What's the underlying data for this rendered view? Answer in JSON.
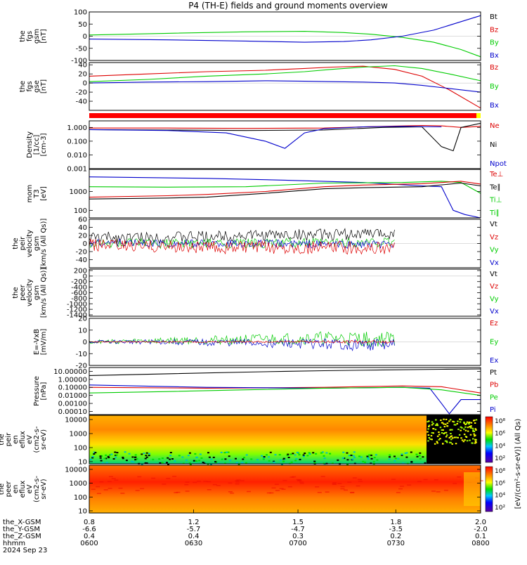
{
  "title": "P4 (TH-E) fields and ground moments overview",
  "x_axis": {
    "rows": [
      {
        "label": "the_X-GSM",
        "values": [
          "0.8",
          "1.2",
          "1.5",
          "1.8",
          "2.0"
        ]
      },
      {
        "label": "the_Y-GSM",
        "values": [
          "-6.6",
          "-5.7",
          "-4.7",
          "-3.5",
          "-2.0"
        ]
      },
      {
        "label": "the_Z-GSM",
        "values": [
          "0.4",
          "0.4",
          "0.3",
          "0.2",
          "0.1"
        ]
      },
      {
        "label": "hhmm",
        "values": [
          "0600",
          "0630",
          "0700",
          "0730",
          "0800"
        ]
      }
    ],
    "date_label": "2024 Sep 23"
  },
  "colorbar_label": "[eV/(cm²-s-sr-eV)] (All Qs)",
  "colors": {
    "black": "#000000",
    "red": "#dd0000",
    "green": "#00cc00",
    "blue": "#0000cc",
    "status_bar": "#ff0000"
  },
  "chart_data": [
    {
      "id": "fgs-gsm",
      "type": "line",
      "ylabel": [
        "the",
        "fgs",
        "gsm",
        "[nT]"
      ],
      "ylim": [
        -100,
        100
      ],
      "ytick_values": [
        -100,
        -50,
        0,
        50,
        100
      ],
      "ytick_labels": [
        "-100",
        "-50",
        "0",
        "50",
        "100"
      ],
      "legend": [
        {
          "text": "Bt",
          "color": "#000000"
        },
        {
          "text": "Bz",
          "color": "#dd0000"
        },
        {
          "text": "By",
          "color": "#00cc00"
        },
        {
          "text": "Bx",
          "color": "#0000cc"
        }
      ],
      "x": [
        "06:00",
        "06:30",
        "07:00",
        "07:30",
        "08:00"
      ],
      "series": [
        {
          "name": "By",
          "color": "#00cc00",
          "x": [
            0,
            0.2,
            0.4,
            0.55,
            0.65,
            0.72,
            0.8,
            0.88,
            0.95,
            1.0
          ],
          "values": [
            5,
            12,
            18,
            20,
            15,
            8,
            -5,
            -25,
            -55,
            -85
          ]
        },
        {
          "name": "Bx",
          "color": "#0000cc",
          "x": [
            0,
            0.2,
            0.4,
            0.55,
            0.65,
            0.72,
            0.8,
            0.88,
            0.95,
            1.0
          ],
          "values": [
            -12,
            -15,
            -20,
            -25,
            -22,
            -15,
            0,
            25,
            60,
            85
          ]
        }
      ]
    },
    {
      "id": "fgs-gse",
      "type": "line",
      "ylabel": [
        "the",
        "fgs",
        "gse",
        "[nT]"
      ],
      "ylim": [
        -60,
        45
      ],
      "ytick_values": [
        -40,
        -20,
        0,
        20,
        40
      ],
      "ytick_labels": [
        "-40",
        "-20",
        "0",
        "20",
        "40"
      ],
      "legend": [
        {
          "text": "Bz",
          "color": "#dd0000"
        },
        {
          "text": "By",
          "color": "#00cc00"
        },
        {
          "text": "Bx",
          "color": "#0000cc"
        }
      ],
      "x": [
        "06:00",
        "06:30",
        "07:00",
        "07:30",
        "08:00"
      ],
      "series": [
        {
          "name": "Bz",
          "color": "#dd0000",
          "x": [
            0,
            0.15,
            0.3,
            0.45,
            0.55,
            0.62,
            0.7,
            0.78,
            0.85,
            0.92,
            1.0
          ],
          "values": [
            15,
            20,
            25,
            28,
            32,
            35,
            37,
            30,
            15,
            -15,
            -55
          ]
        },
        {
          "name": "By",
          "color": "#00cc00",
          "x": [
            0,
            0.15,
            0.3,
            0.45,
            0.55,
            0.62,
            0.7,
            0.78,
            0.85,
            0.92,
            1.0
          ],
          "values": [
            3,
            8,
            15,
            20,
            25,
            30,
            35,
            38,
            32,
            20,
            5
          ]
        },
        {
          "name": "Bx",
          "color": "#0000cc",
          "x": [
            0,
            0.15,
            0.3,
            0.45,
            0.55,
            0.62,
            0.7,
            0.78,
            0.85,
            0.92,
            1.0
          ],
          "values": [
            0,
            2,
            3,
            5,
            4,
            3,
            2,
            0,
            -5,
            -12,
            -20
          ]
        }
      ]
    },
    {
      "id": "density",
      "type": "line",
      "log_scale": true,
      "ylabel": [
        "Density",
        "[1/cc]",
        "[cm-3]"
      ],
      "ylim": [
        0.001,
        3
      ],
      "ytick_values": [
        0.001,
        0.01,
        0.1,
        1
      ],
      "ytick_labels": [
        "0.001",
        "0.010",
        "0.100",
        "1.000"
      ],
      "legend": [
        {
          "text": "Ne",
          "color": "#dd0000"
        },
        {
          "text": "Ni",
          "color": "#000000"
        },
        {
          "text": "Npot",
          "color": "#0000cc"
        }
      ],
      "x": [
        "06:00",
        "06:30",
        "07:00",
        "07:30",
        "08:00"
      ],
      "series": [
        {
          "name": "Ne",
          "color": "#dd0000",
          "x": [
            0,
            0.2,
            0.4,
            0.6,
            0.75,
            0.85,
            0.9,
            0.95,
            1.0
          ],
          "values": [
            0.9,
            0.9,
            0.85,
            0.9,
            1.2,
            1.4,
            1.3,
            1.0,
            1.2
          ]
        },
        {
          "name": "Ni",
          "color": "#000000",
          "x": [
            0,
            0.2,
            0.4,
            0.6,
            0.75,
            0.85,
            0.9,
            0.93,
            0.95,
            1.0
          ],
          "values": [
            0.7,
            0.65,
            0.6,
            0.65,
            1.0,
            1.1,
            0.04,
            0.02,
            1.0,
            2.0
          ]
        },
        {
          "name": "Npot",
          "color": "#0000cc",
          "x": [
            0,
            0.2,
            0.35,
            0.45,
            0.5,
            0.55,
            0.6,
            0.7,
            0.8,
            0.9
          ],
          "values": [
            0.7,
            0.6,
            0.4,
            0.1,
            0.03,
            0.4,
            0.8,
            1.1,
            1.2,
            1.1
          ]
        }
      ]
    },
    {
      "id": "mom-temp",
      "type": "line",
      "log_scale": true,
      "ylabel": [
        "mom",
        "T3",
        "[eV]"
      ],
      "ylim": [
        40,
        15000
      ],
      "ytick_values": [
        100,
        1000
      ],
      "ytick_labels": [
        "100",
        "1000"
      ],
      "legend": [
        {
          "text": "Te⊥",
          "color": "#dd0000"
        },
        {
          "text": "Te∥",
          "color": "#000000"
        },
        {
          "text": "Ti⊥",
          "color": "#00cc00"
        },
        {
          "text": "Ti∥",
          "color": "#00cc00"
        }
      ],
      "x": [
        "06:00",
        "06:30",
        "07:00",
        "07:30",
        "08:00"
      ],
      "series": [
        {
          "name": "Ti",
          "color": "#0000cc",
          "x": [
            0,
            0.3,
            0.5,
            0.7,
            0.85,
            0.9,
            0.93,
            0.96,
            1.0
          ],
          "values": [
            6000,
            5000,
            4000,
            3000,
            2000,
            1800,
            100,
            60,
            40
          ]
        },
        {
          "name": "Ti∥",
          "color": "#00cc00",
          "x": [
            0,
            0.2,
            0.4,
            0.6,
            0.8,
            0.9,
            0.95,
            1.0
          ],
          "values": [
            1800,
            1700,
            1800,
            2800,
            3000,
            3500,
            3000,
            800
          ]
        },
        {
          "name": "Te⊥",
          "color": "#dd0000",
          "x": [
            0,
            0.2,
            0.3,
            0.45,
            0.6,
            0.7,
            0.85,
            0.95,
            1.0
          ],
          "values": [
            500,
            600,
            700,
            1000,
            1800,
            2200,
            2600,
            3500,
            2500
          ]
        },
        {
          "name": "Te∥",
          "color": "#000000",
          "x": [
            0,
            0.2,
            0.3,
            0.45,
            0.6,
            0.7,
            0.85,
            0.95,
            1.0
          ],
          "values": [
            400,
            450,
            500,
            800,
            1400,
            1600,
            1800,
            2800,
            2000
          ]
        }
      ]
    },
    {
      "id": "peir-velocity",
      "type": "line",
      "ylabel": [
        "the",
        "peir",
        "velocity",
        "gsm",
        "[km/s (All Qs)]"
      ],
      "ylim": [
        -60,
        60
      ],
      "ytick_values": [
        -40,
        -20,
        0,
        20,
        40,
        60
      ],
      "ytick_labels": [
        "-40",
        "-20",
        "0",
        "20",
        "40",
        "60"
      ],
      "legend": [
        {
          "text": "Vt",
          "color": "#000000"
        },
        {
          "text": "Vz",
          "color": "#dd0000"
        },
        {
          "text": "Vy",
          "color": "#00cc00"
        },
        {
          "text": "Vx",
          "color": "#0000cc"
        }
      ],
      "x": [
        "06:00",
        "06:30",
        "07:00",
        "07:30",
        "08:00"
      ],
      "series": [
        {
          "name": "Vt",
          "color": "#000000",
          "x": [
            0,
            0.2,
            0.4,
            0.6,
            0.78
          ],
          "values": [
            15,
            15,
            20,
            22,
            25
          ]
        },
        {
          "name": "Vx",
          "color": "#0000cc",
          "x": [
            0,
            0.2,
            0.4,
            0.6,
            0.78
          ],
          "values": [
            2,
            0,
            0,
            -2,
            -3
          ]
        },
        {
          "name": "Vy",
          "color": "#00cc00",
          "x": [
            0,
            0.2,
            0.4,
            0.6,
            0.78
          ],
          "values": [
            0,
            0,
            0,
            2,
            3
          ]
        },
        {
          "name": "Vz",
          "color": "#dd0000",
          "x": [
            0,
            0.2,
            0.4,
            0.6,
            0.78
          ],
          "values": [
            -5,
            -8,
            -10,
            -10,
            -12
          ]
        }
      ]
    },
    {
      "id": "peer-velocity",
      "type": "line",
      "ylabel": [
        "the",
        "peer",
        "velocity",
        "gsm",
        "[km/s (All Qs)]"
      ],
      "ylim": [
        -1450,
        250
      ],
      "ytick_values": [
        -1400,
        -1200,
        -1000,
        -800,
        -600,
        -400,
        -200,
        0,
        200
      ],
      "ytick_labels": [
        "-1400",
        "-1200",
        "-1000",
        "-800",
        "-600",
        "-400",
        "-200",
        "0",
        "200"
      ],
      "legend": [
        {
          "text": "Vt",
          "color": "#000000"
        },
        {
          "text": "Vz",
          "color": "#dd0000"
        },
        {
          "text": "Vy",
          "color": "#00cc00"
        },
        {
          "text": "Vx",
          "color": "#0000cc"
        }
      ],
      "x": [
        "06:00",
        "06:30",
        "07:00",
        "07:30",
        "08:00"
      ],
      "series": []
    },
    {
      "id": "e-field",
      "type": "line",
      "ylabel": [
        "E=-VxB",
        "[mV/m]"
      ],
      "ylim": [
        -20,
        20
      ],
      "ytick_values": [
        -20,
        -10,
        0,
        10,
        20
      ],
      "ytick_labels": [
        "-20",
        "-10",
        "0",
        "10",
        "20"
      ],
      "legend": [
        {
          "text": "Ez",
          "color": "#dd0000"
        },
        {
          "text": "Ey",
          "color": "#00cc00"
        },
        {
          "text": "Ex",
          "color": "#0000cc"
        }
      ],
      "x": [
        "06:00",
        "06:30",
        "07:00",
        "07:30",
        "08:00"
      ],
      "series": [
        {
          "name": "Ey",
          "color": "#00cc00",
          "x": [
            0,
            0.2,
            0.4,
            0.6,
            0.78
          ],
          "values": [
            0,
            1,
            2,
            3,
            2
          ]
        },
        {
          "name": "Ex",
          "color": "#0000cc",
          "x": [
            0,
            0.2,
            0.4,
            0.6,
            0.78
          ],
          "values": [
            0,
            0,
            -1,
            -2,
            -3
          ]
        },
        {
          "name": "Ez",
          "color": "#dd0000",
          "x": [
            0,
            0.2,
            0.4,
            0.6,
            0.78
          ],
          "values": [
            0,
            0,
            0,
            0,
            0
          ]
        }
      ]
    },
    {
      "id": "pressure",
      "type": "line",
      "log_scale": true,
      "ylabel": [
        "Pressure",
        "[nPa]"
      ],
      "ylim": [
        4e-05,
        30
      ],
      "ytick_values": [
        0.0001,
        0.001,
        0.01,
        0.1,
        1,
        10
      ],
      "ytick_labels": [
        "0.00010",
        "0.00100",
        "0.01000",
        "0.10000",
        "1.00000",
        "10.00000"
      ],
      "legend": [
        {
          "text": "Pt",
          "color": "#000000"
        },
        {
          "text": "Pb",
          "color": "#dd0000"
        },
        {
          "text": "Pe",
          "color": "#00cc00"
        },
        {
          "text": "Pi",
          "color": "#0000cc"
        }
      ],
      "x": [
        "06:00",
        "06:30",
        "07:00",
        "07:30",
        "08:00"
      ],
      "series": [
        {
          "name": "Pt",
          "color": "#000000",
          "x": [
            0,
            0.2,
            0.4,
            0.5,
            0.6,
            0.75,
            0.9,
            1.0
          ],
          "values": [
            3,
            5,
            8,
            10,
            12,
            15,
            18,
            20
          ]
        },
        {
          "name": "Pb",
          "color": "#dd0000",
          "x": [
            0,
            0.3,
            0.6,
            0.8,
            0.9,
            1.0
          ],
          "values": [
            0.1,
            0.08,
            0.1,
            0.15,
            0.12,
            0.02
          ]
        },
        {
          "name": "Pi",
          "color": "#0000cc",
          "x": [
            0,
            0.3,
            0.6,
            0.8,
            0.87,
            0.9,
            0.92,
            0.95,
            1.0
          ],
          "values": [
            0.2,
            0.1,
            0.08,
            0.1,
            0.08,
            0.001,
            5e-05,
            0.003,
            0.003
          ]
        },
        {
          "name": "Pe",
          "color": "#00cc00",
          "x": [
            0,
            0.2,
            0.4,
            0.6,
            0.8,
            0.9,
            1.0
          ],
          "values": [
            0.02,
            0.03,
            0.05,
            0.08,
            0.1,
            0.05,
            0.01
          ]
        }
      ]
    },
    {
      "id": "peir-spectrogram",
      "type": "heatmap",
      "log_scale": true,
      "ylabel": [
        "the",
        "peir",
        "en",
        "eflux",
        "eV",
        "(cm2-s-",
        "sr-eV)"
      ],
      "ylim": [
        7,
        20000
      ],
      "ytick_values": [
        10,
        100,
        1000,
        10000
      ],
      "ytick_labels": [
        "10",
        "100",
        "1000",
        "10000"
      ],
      "colorbar": {
        "ticks": [
          "10²",
          "10⁴",
          "10⁶",
          "10⁸"
        ]
      }
    },
    {
      "id": "peer-spectrogram",
      "type": "heatmap",
      "log_scale": true,
      "ylabel": [
        "the",
        "peer",
        "en",
        "eflux",
        "eV",
        "(cm2-s-",
        "sr-eV)"
      ],
      "ylim": [
        7,
        20000
      ],
      "ytick_values": [
        10,
        100,
        1000,
        10000
      ],
      "ytick_labels": [
        "10",
        "100",
        "1000",
        "10000"
      ],
      "colorbar": {
        "ticks": [
          "10²",
          "10⁴",
          "10⁶",
          "10⁸"
        ]
      }
    }
  ]
}
